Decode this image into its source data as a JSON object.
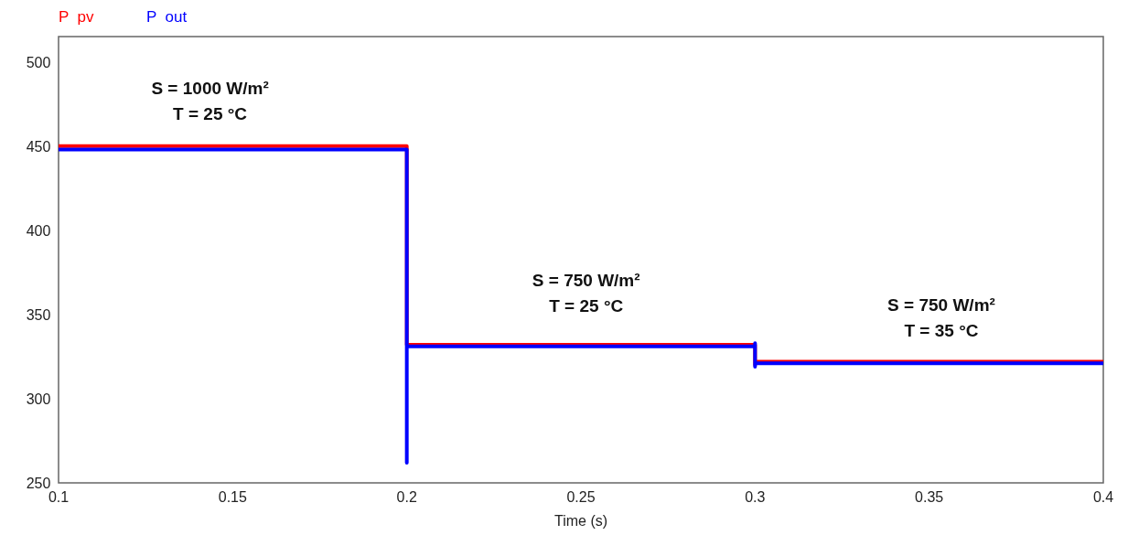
{
  "chart_data": {
    "type": "line",
    "xlabel": "Time (s)",
    "xlim": [
      0.1,
      0.4
    ],
    "xticks": [
      0.1,
      0.15,
      0.2,
      0.25,
      0.3,
      0.35,
      0.4
    ],
    "ylim": [
      250,
      515
    ],
    "yticks": [
      250,
      300,
      350,
      400,
      450,
      500
    ],
    "grid": false,
    "legend": "top left",
    "line_style": "solid",
    "series": [
      {
        "name": "P  pv",
        "color": "#ff0000",
        "x": [
          0.1,
          0.2,
          0.2,
          0.3,
          0.3,
          0.3,
          0.4
        ],
        "values": [
          450,
          450,
          332,
          332,
          320,
          322,
          322
        ]
      },
      {
        "name": "P  out",
        "color": "#0000ff",
        "x": [
          0.1,
          0.2,
          0.2,
          0.2,
          0.3,
          0.3,
          0.3,
          0.3,
          0.4
        ],
        "values": [
          448,
          448,
          262,
          331,
          331,
          333,
          319,
          321,
          321
        ]
      }
    ],
    "annotations": [
      "S = 1000 W/m²\nT = 25 °C",
      "S = 750 W/m²\nT = 25 °C",
      "S = 750 W/m²\nT = 35 °C"
    ]
  }
}
